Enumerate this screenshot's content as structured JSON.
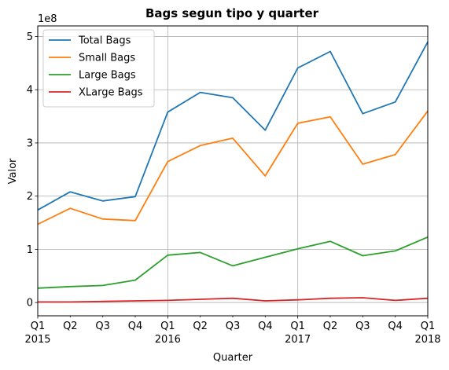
{
  "chart_data": {
    "type": "line",
    "title": "Bags segun tipo y quarter",
    "xlabel": "Quarter",
    "ylabel": "Valor",
    "y_scale_label": "1e8",
    "x_tick_labels": [
      [
        "Q1",
        "2015"
      ],
      [
        "Q2"
      ],
      [
        "Q3"
      ],
      [
        "Q4"
      ],
      [
        "Q1",
        "2016"
      ],
      [
        "Q2"
      ],
      [
        "Q3"
      ],
      [
        "Q4"
      ],
      [
        "Q1",
        "2017"
      ],
      [
        "Q2"
      ],
      [
        "Q3"
      ],
      [
        "Q4"
      ],
      [
        "Q1",
        "2018"
      ]
    ],
    "ylim": [
      -0.25,
      5.2
    ],
    "yticks": [
      0,
      1,
      2,
      3,
      4,
      5
    ],
    "ytick_labels": [
      "0",
      "1",
      "2",
      "3",
      "4",
      "5"
    ],
    "major_x_ticks": [
      0,
      4,
      8,
      12
    ],
    "grid": true,
    "legend_position": "top-left",
    "series": [
      {
        "name": "Total Bags",
        "color": "#1f77b4",
        "values": [
          1.74,
          2.08,
          1.91,
          1.99,
          3.58,
          3.95,
          3.85,
          3.24,
          4.41,
          4.72,
          3.55,
          3.77,
          4.9
        ]
      },
      {
        "name": "Small Bags",
        "color": "#ff7f0e",
        "values": [
          1.47,
          1.77,
          1.57,
          1.54,
          2.65,
          2.95,
          3.09,
          2.38,
          3.37,
          3.49,
          2.6,
          2.78,
          3.6
        ]
      },
      {
        "name": "Large Bags",
        "color": "#2ca02c",
        "values": [
          0.27,
          0.3,
          0.32,
          0.42,
          0.89,
          0.94,
          0.69,
          0.85,
          1.01,
          1.15,
          0.88,
          0.97,
          1.23
        ]
      },
      {
        "name": "XLarge Bags",
        "color": "#d62728",
        "values": [
          0.01,
          0.01,
          0.02,
          0.03,
          0.04,
          0.06,
          0.08,
          0.03,
          0.05,
          0.08,
          0.09,
          0.04,
          0.08
        ]
      }
    ]
  }
}
